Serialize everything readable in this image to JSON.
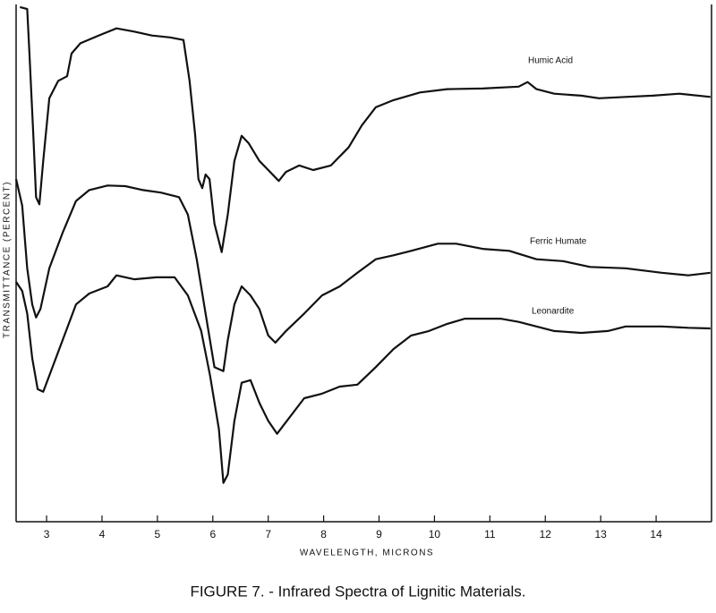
{
  "chart_data": {
    "type": "line",
    "title": "FIGURE 7. - Infrared Spectra of Lignitic Materials.",
    "x_label": "WAVELENGTH, MICRONS",
    "y_label": "TRANSMITTANCE (PERCENT)",
    "xlim": [
      2.45,
      15
    ],
    "xticks": [
      3,
      4,
      5,
      6,
      7,
      8,
      9,
      10,
      11,
      12,
      13,
      14
    ],
    "ylim": [
      0,
      8
    ],
    "color": "#111111",
    "series": [
      {
        "name": "Humic Acid",
        "color": "#111111",
        "x": [
          2.52,
          2.65,
          2.69,
          2.76,
          2.81,
          2.87,
          2.94,
          3.05,
          3.21,
          3.37,
          3.45,
          3.61,
          3.94,
          4.26,
          4.58,
          4.9,
          5.23,
          5.47,
          5.58,
          5.68,
          5.74,
          5.81,
          5.87,
          5.94,
          6.03,
          6.16,
          6.27,
          6.39,
          6.52,
          6.65,
          6.84,
          7.0,
          7.19,
          7.32,
          7.56,
          7.81,
          8.13,
          8.45,
          8.69,
          8.94,
          9.26,
          9.74,
          10.23,
          10.87,
          11.52,
          11.68,
          11.84,
          12.16,
          12.65,
          12.97,
          13.45,
          13.94,
          14.42,
          14.98
        ],
        "values": [
          7.96,
          7.93,
          7.24,
          5.99,
          5.02,
          4.91,
          5.58,
          6.55,
          6.82,
          6.89,
          7.24,
          7.4,
          7.52,
          7.63,
          7.58,
          7.52,
          7.49,
          7.45,
          6.82,
          5.99,
          5.3,
          5.16,
          5.37,
          5.3,
          4.61,
          4.17,
          4.75,
          5.58,
          5.97,
          5.85,
          5.58,
          5.44,
          5.27,
          5.41,
          5.51,
          5.44,
          5.51,
          5.79,
          6.13,
          6.41,
          6.52,
          6.64,
          6.69,
          6.7,
          6.73,
          6.8,
          6.69,
          6.62,
          6.59,
          6.55,
          6.57,
          6.59,
          6.62,
          6.57
        ]
      },
      {
        "name": "Ferric Humate",
        "color": "#111111",
        "x": [
          2.45,
          2.56,
          2.65,
          2.74,
          2.81,
          2.89,
          3.05,
          3.29,
          3.53,
          3.77,
          4.1,
          4.42,
          4.74,
          5.06,
          5.39,
          5.55,
          5.71,
          5.87,
          6.03,
          6.19,
          6.27,
          6.39,
          6.52,
          6.68,
          6.84,
          7.0,
          7.13,
          7.32,
          7.65,
          7.97,
          8.29,
          8.61,
          8.94,
          9.26,
          9.58,
          10.06,
          10.39,
          10.87,
          11.35,
          11.84,
          12.32,
          12.81,
          13.45,
          14.1,
          14.58,
          14.98
        ],
        "values": [
          5.3,
          4.89,
          3.92,
          3.36,
          3.16,
          3.29,
          3.92,
          4.47,
          4.96,
          5.13,
          5.2,
          5.19,
          5.13,
          5.09,
          5.02,
          4.75,
          4.06,
          3.22,
          2.39,
          2.33,
          2.81,
          3.36,
          3.64,
          3.5,
          3.29,
          2.88,
          2.77,
          2.95,
          3.22,
          3.5,
          3.64,
          3.85,
          4.06,
          4.12,
          4.19,
          4.3,
          4.3,
          4.22,
          4.19,
          4.06,
          4.03,
          3.94,
          3.92,
          3.85,
          3.81,
          3.85
        ]
      },
      {
        "name": "Leonardite",
        "color": "#111111",
        "x": [
          2.45,
          2.56,
          2.65,
          2.74,
          2.84,
          2.94,
          3.05,
          3.29,
          3.53,
          3.77,
          4.1,
          4.26,
          4.58,
          4.98,
          5.31,
          5.55,
          5.79,
          5.95,
          6.11,
          6.19,
          6.27,
          6.39,
          6.52,
          6.68,
          6.84,
          7.0,
          7.16,
          7.32,
          7.65,
          7.97,
          8.29,
          8.61,
          8.94,
          9.26,
          9.58,
          9.9,
          10.23,
          10.55,
          11.19,
          11.52,
          11.84,
          12.16,
          12.65,
          13.13,
          13.45,
          14.1,
          14.58,
          14.98
        ],
        "values": [
          3.71,
          3.57,
          3.22,
          2.53,
          2.05,
          2.01,
          2.26,
          2.81,
          3.36,
          3.53,
          3.64,
          3.81,
          3.75,
          3.78,
          3.78,
          3.5,
          2.95,
          2.26,
          1.43,
          0.6,
          0.73,
          1.56,
          2.15,
          2.19,
          1.84,
          1.56,
          1.36,
          1.54,
          1.91,
          1.98,
          2.09,
          2.12,
          2.39,
          2.67,
          2.88,
          2.95,
          3.06,
          3.14,
          3.14,
          3.09,
          3.02,
          2.95,
          2.92,
          2.95,
          3.02,
          3.02,
          3.0,
          2.99
        ]
      }
    ]
  }
}
